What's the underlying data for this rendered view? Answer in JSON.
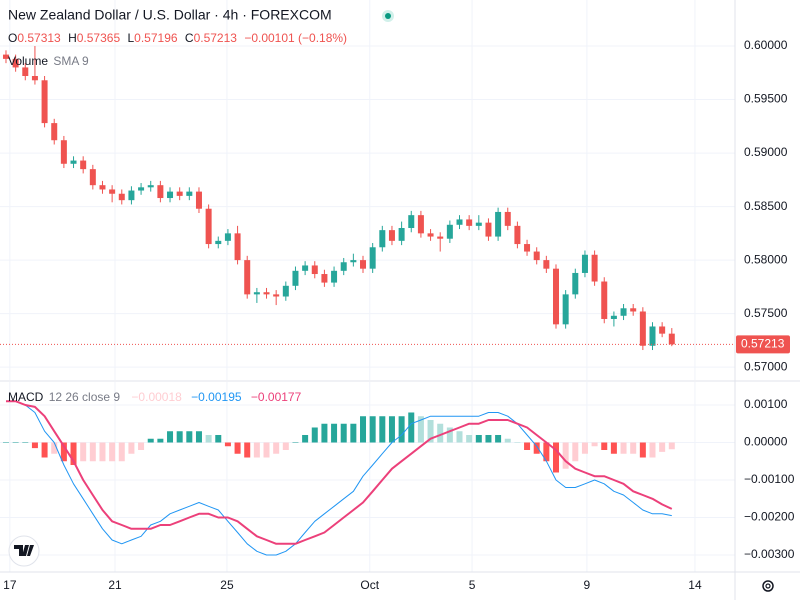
{
  "header": {
    "title": "New Zealand Dollar / U.S. Dollar · 4h · FOREXCOM",
    "ohlc_labels": [
      "O",
      "H",
      "L",
      "C"
    ],
    "change": "−0.00101 (−0.18%)",
    "volume_label": "Volume",
    "volume_params": "SMA 9"
  },
  "chart_data": [
    {
      "type": "candlestick",
      "up_color": "#26a69a",
      "down_color": "#ef5350",
      "grid": true,
      "open": [
        0.5992,
        0.5988,
        0.598,
        0.5972,
        0.5968,
        0.5928,
        0.5912,
        0.589,
        0.5893,
        0.5885,
        0.587,
        0.5866,
        0.5862,
        0.5856,
        0.5865,
        0.5868,
        0.587,
        0.5858,
        0.5864,
        0.586,
        0.5864,
        0.5848,
        0.5815,
        0.5818,
        0.5825,
        0.58,
        0.5768,
        0.577,
        0.5768,
        0.5766,
        0.5776,
        0.579,
        0.5795,
        0.5787,
        0.5779,
        0.579,
        0.5798,
        0.58,
        0.5792,
        0.5812,
        0.5828,
        0.5818,
        0.583,
        0.5842,
        0.5825,
        0.5822,
        0.582,
        0.5833,
        0.5838,
        0.5832,
        0.5835,
        0.5822,
        0.5845,
        0.5832,
        0.5815,
        0.5808,
        0.58,
        0.5792,
        0.574,
        0.5768,
        0.5788,
        0.5805,
        0.578,
        0.5745,
        0.5748,
        0.5755,
        0.5752,
        0.572,
        0.5738,
        0.57313
      ],
      "high": [
        0.5996,
        0.5992,
        0.5984,
        0.6,
        0.5972,
        0.5932,
        0.5916,
        0.5897,
        0.5897,
        0.5889,
        0.5874,
        0.587,
        0.5866,
        0.5869,
        0.5872,
        0.5874,
        0.5874,
        0.5868,
        0.5868,
        0.5868,
        0.5868,
        0.5852,
        0.5822,
        0.5829,
        0.5832,
        0.5804,
        0.5774,
        0.5774,
        0.5772,
        0.578,
        0.5794,
        0.5799,
        0.5799,
        0.5791,
        0.5794,
        0.5802,
        0.5806,
        0.5804,
        0.5816,
        0.5832,
        0.5832,
        0.5836,
        0.5846,
        0.5846,
        0.5829,
        0.5826,
        0.5837,
        0.5842,
        0.5842,
        0.5842,
        0.5839,
        0.5849,
        0.5849,
        0.5836,
        0.5819,
        0.5812,
        0.5804,
        0.5796,
        0.5772,
        0.5792,
        0.5809,
        0.5809,
        0.5784,
        0.5752,
        0.5759,
        0.5759,
        0.5756,
        0.5742,
        0.5742,
        0.57365
      ],
      "low": [
        0.5984,
        0.5976,
        0.5968,
        0.5964,
        0.5924,
        0.5908,
        0.5886,
        0.5886,
        0.5881,
        0.5866,
        0.5862,
        0.5854,
        0.5852,
        0.5852,
        0.5861,
        0.5864,
        0.5854,
        0.5854,
        0.5856,
        0.5856,
        0.5844,
        0.5811,
        0.5811,
        0.5814,
        0.5796,
        0.5764,
        0.576,
        0.5764,
        0.5758,
        0.5762,
        0.5772,
        0.5786,
        0.5783,
        0.5775,
        0.5775,
        0.5786,
        0.5794,
        0.5788,
        0.5788,
        0.5808,
        0.5814,
        0.5814,
        0.5826,
        0.5821,
        0.5818,
        0.5808,
        0.5816,
        0.5829,
        0.5828,
        0.5828,
        0.5818,
        0.5818,
        0.5828,
        0.5811,
        0.5804,
        0.5796,
        0.5788,
        0.5736,
        0.5736,
        0.5764,
        0.5784,
        0.5776,
        0.5741,
        0.5738,
        0.5744,
        0.5748,
        0.5716,
        0.5716,
        0.5728,
        0.57196
      ],
      "close": [
        0.5988,
        0.598,
        0.5972,
        0.5968,
        0.5928,
        0.5912,
        0.589,
        0.5893,
        0.5885,
        0.587,
        0.5866,
        0.5862,
        0.5856,
        0.5865,
        0.5868,
        0.587,
        0.5858,
        0.5864,
        0.586,
        0.5864,
        0.5848,
        0.5815,
        0.5818,
        0.5825,
        0.58,
        0.5768,
        0.577,
        0.5768,
        0.5766,
        0.5776,
        0.579,
        0.5795,
        0.5787,
        0.5779,
        0.579,
        0.5798,
        0.58,
        0.5792,
        0.5812,
        0.5828,
        0.5818,
        0.583,
        0.5842,
        0.5825,
        0.5822,
        0.582,
        0.5833,
        0.5838,
        0.5832,
        0.5835,
        0.5822,
        0.5845,
        0.5832,
        0.5815,
        0.5808,
        0.58,
        0.5792,
        0.574,
        0.5768,
        0.5788,
        0.5805,
        0.578,
        0.5745,
        0.5748,
        0.5755,
        0.5752,
        0.572,
        0.5738,
        0.57313,
        0.57213
      ],
      "xlim": [
        -0.62,
        75.55
      ],
      "xticks": [
        {
          "value": 0.4,
          "label": "17"
        },
        {
          "value": 11.3,
          "label": "21"
        },
        {
          "value": 22.9,
          "label": "25"
        },
        {
          "value": 37.7,
          "label": "Oct"
        },
        {
          "value": 48.3,
          "label": "5"
        },
        {
          "value": 60.2,
          "label": "9"
        },
        {
          "value": 71.4,
          "label": "14"
        }
      ],
      "ylim": [
        0.5688,
        0.6043
      ],
      "yticks": [
        {
          "value": 0.6,
          "label": "0.60000"
        },
        {
          "value": 0.595,
          "label": "0.59500"
        },
        {
          "value": 0.59,
          "label": "0.59000"
        },
        {
          "value": 0.585,
          "label": "0.58500"
        },
        {
          "value": 0.58,
          "label": "0.58000"
        },
        {
          "value": 0.575,
          "label": "0.57500"
        },
        {
          "value": 0.57,
          "label": "0.57000"
        }
      ]
    },
    {
      "type": "macd",
      "name": "MACD",
      "params": "12 26 close 9",
      "grid": true,
      "histogram": {
        "colors": [
          "#26a69a",
          "#b2dfdb",
          "#ffcdd2",
          "#ff5252"
        ],
        "value_label": "−0.00018",
        "values": [
          0,
          0,
          0,
          -0.00015,
          -0.0004,
          -0.0003,
          -0.0005,
          -0.0006,
          -0.0005,
          -0.0005,
          -0.0005,
          -0.0005,
          -0.0005,
          -0.0003,
          -0.0002,
          0.0001,
          0.0001,
          0.0003,
          0.0003,
          0.0003,
          0.0003,
          0.0002,
          0.0002,
          -0.0001,
          -0.0003,
          -0.0004,
          -0.0004,
          -0.0004,
          -0.0003,
          -0.0002,
          0,
          0.0002,
          0.0004,
          0.0005,
          0.0005,
          0.0005,
          0.0005,
          0.0007,
          0.0007,
          0.0007,
          0.0007,
          0.0007,
          0.0008,
          0.0007,
          0.0006,
          0.0005,
          0.0004,
          0.0003,
          0.0002,
          0.0002,
          0.0002,
          0.0002,
          0.0001,
          0,
          -0.0002,
          -0.0003,
          -0.0005,
          -0.0008,
          -0.0007,
          -0.0005,
          -0.0003,
          -0.0001,
          -0.0002,
          -0.0003,
          -0.0003,
          -0.0003,
          -0.0004,
          -0.0004,
          -0.00025,
          -0.00018
        ]
      },
      "macd": {
        "color": "#2196f3",
        "value_label": "−0.00195",
        "values": [
          0.0011,
          0.0011,
          0.001,
          0.0008,
          0.0003,
          0,
          -0.0006,
          -0.0011,
          -0.0015,
          -0.0019,
          -0.0023,
          -0.0026,
          -0.0027,
          -0.0026,
          -0.0025,
          -0.0022,
          -0.0021,
          -0.0019,
          -0.0018,
          -0.0017,
          -0.0016,
          -0.0017,
          -0.0018,
          -0.0021,
          -0.0024,
          -0.0027,
          -0.0029,
          -0.003,
          -0.003,
          -0.0029,
          -0.0027,
          -0.0024,
          -0.0021,
          -0.0019,
          -0.0017,
          -0.0015,
          -0.0013,
          -0.0009,
          -0.0006,
          -0.0003,
          0,
          0.0002,
          0.0005,
          0.0006,
          0.0007,
          0.0007,
          0.0007,
          0.0007,
          0.0007,
          0.0007,
          0.0008,
          0.0008,
          0.0007,
          0.0005,
          0.0002,
          -0.0001,
          -0.0005,
          -0.001,
          -0.0012,
          -0.0012,
          -0.0011,
          -0.001,
          -0.0011,
          -0.0013,
          -0.0014,
          -0.0016,
          -0.0018,
          -0.0019,
          -0.0019,
          -0.00195
        ]
      },
      "signal": {
        "color": "#ec407a",
        "value_label": "−0.00177",
        "values": [
          0.0011,
          0.0011,
          0.001,
          0.00095,
          0.0007,
          0.0003,
          -0.0001,
          -0.0005,
          -0.001,
          -0.0014,
          -0.0018,
          -0.0021,
          -0.0022,
          -0.0023,
          -0.0023,
          -0.0023,
          -0.0022,
          -0.0022,
          -0.0021,
          -0.002,
          -0.0019,
          -0.0019,
          -0.002,
          -0.002,
          -0.0021,
          -0.0023,
          -0.0025,
          -0.0026,
          -0.0027,
          -0.0027,
          -0.0027,
          -0.0026,
          -0.0025,
          -0.0024,
          -0.0022,
          -0.002,
          -0.0018,
          -0.0016,
          -0.0013,
          -0.001,
          -0.0007,
          -0.0005,
          -0.0003,
          -0.0001,
          0.0001,
          0.0002,
          0.0003,
          0.0004,
          0.0005,
          0.0005,
          0.0006,
          0.0006,
          0.0006,
          0.0005,
          0.0004,
          0.0002,
          0,
          -0.0002,
          -0.0005,
          -0.0007,
          -0.0008,
          -0.0009,
          -0.0009,
          -0.001,
          -0.0011,
          -0.0013,
          -0.0014,
          -0.0015,
          -0.00165,
          -0.00177
        ]
      },
      "ylim": [
        -0.003453,
        0.001613
      ],
      "yticks": [
        {
          "value": 0.001,
          "label": "0.00100"
        },
        {
          "value": 0,
          "label": "0.00000"
        },
        {
          "value": -0.001,
          "label": "−0.00100"
        },
        {
          "value": -0.002,
          "label": "−0.00200"
        },
        {
          "value": -0.003,
          "label": "−0.00300"
        }
      ]
    }
  ]
}
